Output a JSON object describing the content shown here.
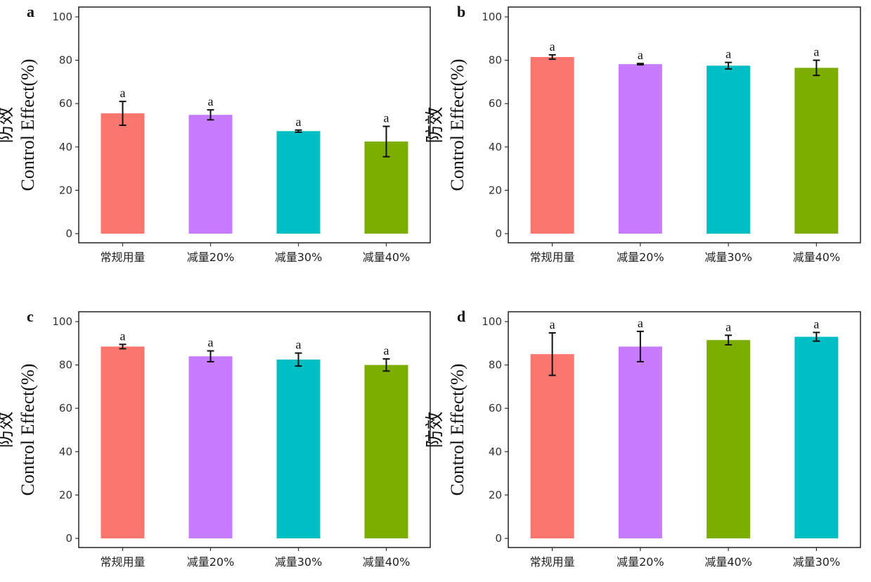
{
  "chart_data": [
    {
      "type": "bar",
      "panel": "a",
      "ylabel_cn": "防效",
      "ylabel_en": "Control Effect(%)",
      "ylim": [
        0,
        100
      ],
      "yticks": [
        0,
        20,
        40,
        60,
        80,
        100
      ],
      "categories": [
        "常规用量",
        "减量20%",
        "减量30%",
        "减量40%"
      ],
      "values": [
        55.5,
        54.8,
        47.3,
        42.5
      ],
      "errors": [
        5.5,
        2.3,
        0.5,
        7.0
      ],
      "significance": [
        "a",
        "a",
        "a",
        "a"
      ],
      "colors": [
        "#f8766d",
        "#c77cff",
        "#00bfc4",
        "#7cae00"
      ],
      "grid": false
    },
    {
      "type": "bar",
      "panel": "b",
      "ylabel_cn": "防效",
      "ylabel_en": "Control Effect(%)",
      "ylim": [
        0,
        100
      ],
      "yticks": [
        0,
        20,
        40,
        60,
        80,
        100
      ],
      "categories": [
        "常规用量",
        "减量20%",
        "减量30%",
        "减量40%"
      ],
      "values": [
        81.5,
        78.2,
        77.5,
        76.5
      ],
      "errors": [
        1.0,
        0.3,
        1.5,
        3.5
      ],
      "significance": [
        "a",
        "a",
        "a",
        "a"
      ],
      "colors": [
        "#f8766d",
        "#c77cff",
        "#00bfc4",
        "#7cae00"
      ],
      "grid": false
    },
    {
      "type": "bar",
      "panel": "c",
      "ylabel_cn": "防效",
      "ylabel_en": "Control Effect(%)",
      "ylim": [
        0,
        100
      ],
      "yticks": [
        0,
        20,
        40,
        60,
        80,
        100
      ],
      "categories": [
        "常规用量",
        "减量20%",
        "减量30%",
        "减量40%"
      ],
      "values": [
        88.5,
        84.0,
        82.5,
        80.0
      ],
      "errors": [
        1.0,
        2.5,
        3.0,
        2.8
      ],
      "significance": [
        "a",
        "a",
        "a",
        "a"
      ],
      "colors": [
        "#f8766d",
        "#c77cff",
        "#00bfc4",
        "#7cae00"
      ],
      "grid": false
    },
    {
      "type": "bar",
      "panel": "d",
      "ylabel_cn": "防效",
      "ylabel_en": "Control Effect(%)",
      "ylim": [
        0,
        100
      ],
      "yticks": [
        0,
        20,
        40,
        60,
        80,
        100
      ],
      "categories": [
        "常规用量",
        "减量20%",
        "减量40%",
        "减量30%"
      ],
      "values": [
        85.0,
        88.5,
        91.5,
        93.0
      ],
      "errors": [
        9.8,
        7.0,
        2.2,
        2.0
      ],
      "significance": [
        "a",
        "a",
        "a",
        "a"
      ],
      "colors": [
        "#f8766d",
        "#c77cff",
        "#7cae00",
        "#00bfc4"
      ],
      "grid": false
    }
  ]
}
